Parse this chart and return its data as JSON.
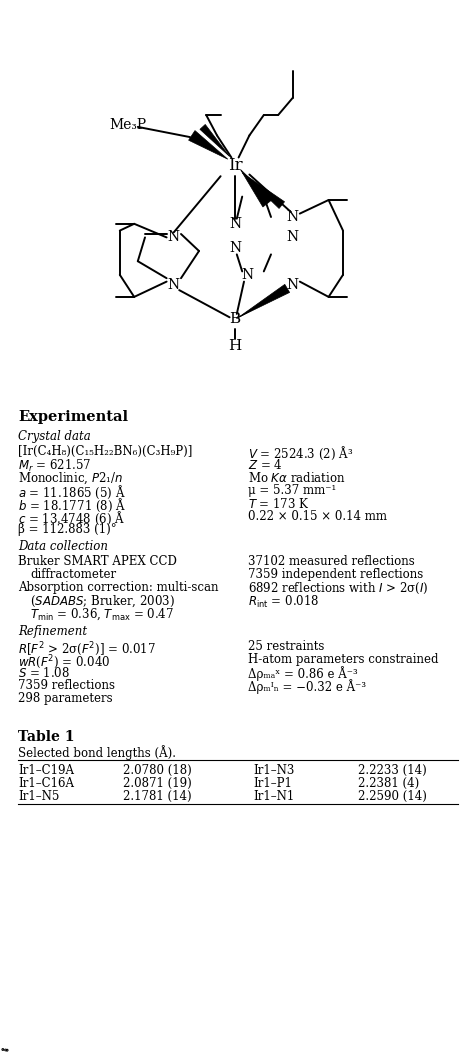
{
  "title": "Table 1",
  "subtitle": "Selected bond lengths (Å).",
  "table_rows": [
    [
      "Ir1–C19A",
      "2.0780 (18)",
      "Ir1–N3",
      "2.2233 (14)"
    ],
    [
      "Ir1–C16A",
      "2.0871 (19)",
      "Ir1–P1",
      "2.2381 (4)"
    ],
    [
      "Ir1–N5",
      "2.1781 (14)",
      "Ir1–N1",
      "2.2590 (14)"
    ]
  ],
  "bg_color": "#ffffff",
  "text_color": "#000000"
}
